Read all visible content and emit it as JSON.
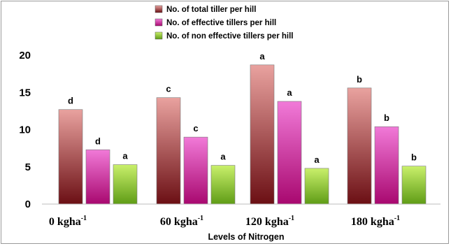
{
  "chart_data": {
    "type": "bar",
    "categories": [
      {
        "base": "0 kgha",
        "sup": "-1"
      },
      {
        "base": "60 kgha",
        "sup": "-1"
      },
      {
        "base": "120 kgha",
        "sup": "-1"
      },
      {
        "base": "180 kgha",
        "sup": "-1"
      }
    ],
    "series": [
      {
        "name": "No. of total tiller per hill",
        "values": [
          12.7,
          14.3,
          18.7,
          15.6
        ],
        "letters": [
          "d",
          "c",
          "a",
          "b"
        ],
        "color_top": "#e9a29f",
        "color_bottom": "#6b0f14"
      },
      {
        "name": "No. of effective tillers per hill",
        "values": [
          7.3,
          9.0,
          13.8,
          10.4
        ],
        "letters": [
          "d",
          "c",
          "a",
          "b"
        ],
        "color_top": "#f17ad8",
        "color_bottom": "#a8086f"
      },
      {
        "name": "No. of non effective tillers per hill",
        "values": [
          5.3,
          5.2,
          4.8,
          5.1
        ],
        "letters": [
          "a",
          "a",
          "a",
          "b"
        ],
        "color_top": "#c9f06b",
        "color_bottom": "#5f9c16"
      }
    ],
    "yticks": [
      0,
      5,
      10,
      15,
      20
    ],
    "ylim": [
      0,
      20
    ],
    "xlabel": "Levels of Nitrogen",
    "ylabel": "",
    "grid": false,
    "legend_position": "top-center"
  }
}
